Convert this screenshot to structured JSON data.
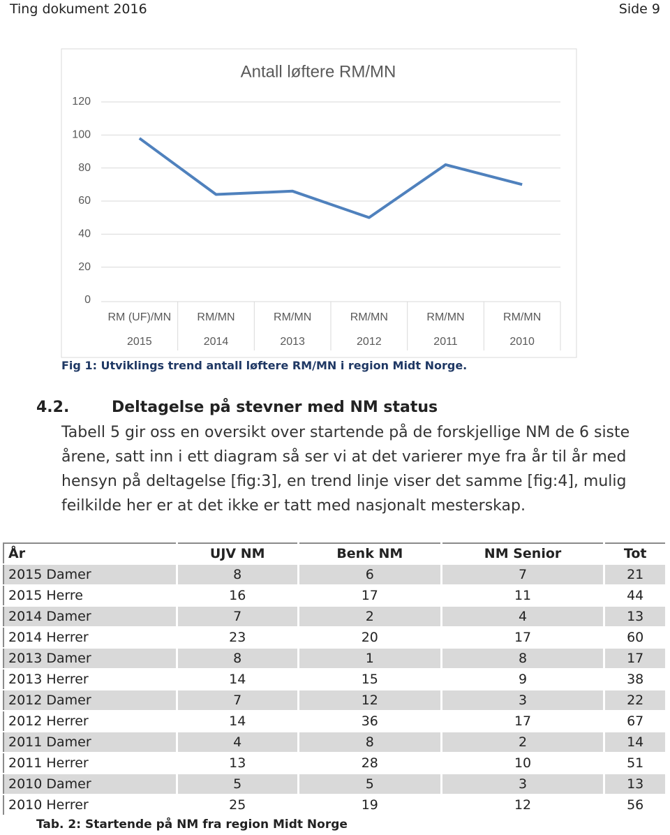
{
  "header": {
    "left": "Ting dokument 2016",
    "right": "Side 9"
  },
  "chart_data": {
    "type": "line",
    "title": "Antall løftere RM/MN",
    "categories": [
      [
        "RM (UF)/MN",
        "2015"
      ],
      [
        "RM/MN",
        "2014"
      ],
      [
        "RM/MN",
        "2013"
      ],
      [
        "RM/MN",
        "2012"
      ],
      [
        "RM/MN",
        "2011"
      ],
      [
        "RM/MN",
        "2010"
      ]
    ],
    "values": [
      98,
      64,
      66,
      50,
      82,
      70
    ],
    "color": "#4f81bd",
    "ylim": [
      0,
      120
    ],
    "yticks": [
      0,
      20,
      40,
      60,
      80,
      100,
      120
    ],
    "grid": true
  },
  "figure_caption": "Fig 1: Utviklings trend antall løftere RM/MN i region Midt Norge.",
  "section": {
    "number": "4.2.",
    "title": "Deltagelse på stevner med NM status",
    "paragraph": "Tabell 5 gir oss en oversikt over startende på de forskjellige NM de 6 siste årene, satt inn i ett diagram så ser vi at det varierer mye fra år til år med hensyn på deltagelse [fig:3], en trend linje viser det samme [fig:4], mulig feilkilde her er at det ikke er tatt med nasjonalt mesterskap."
  },
  "table": {
    "columns": [
      "År",
      "UJV NM",
      "Benk NM",
      "NM Senior",
      "Tot"
    ],
    "rows": [
      [
        "2015 Damer",
        8,
        6,
        7,
        21
      ],
      [
        "2015 Herre",
        16,
        17,
        11,
        44
      ],
      [
        "2014 Damer",
        7,
        2,
        4,
        13
      ],
      [
        "2014 Herrer",
        23,
        20,
        17,
        60
      ],
      [
        "2013 Damer",
        8,
        1,
        8,
        17
      ],
      [
        "2013 Herrer",
        14,
        15,
        9,
        38
      ],
      [
        "2012 Damer",
        7,
        12,
        3,
        22
      ],
      [
        "2012 Herrer",
        14,
        36,
        17,
        67
      ],
      [
        "2011 Damer",
        4,
        8,
        2,
        14
      ],
      [
        "2011 Herrer",
        13,
        28,
        10,
        51
      ],
      [
        "2010 Damer",
        5,
        5,
        3,
        13
      ],
      [
        "2010 Herrer",
        25,
        19,
        12,
        56
      ]
    ],
    "caption": "Tab. 2: Startende på NM fra region Midt Norge"
  }
}
